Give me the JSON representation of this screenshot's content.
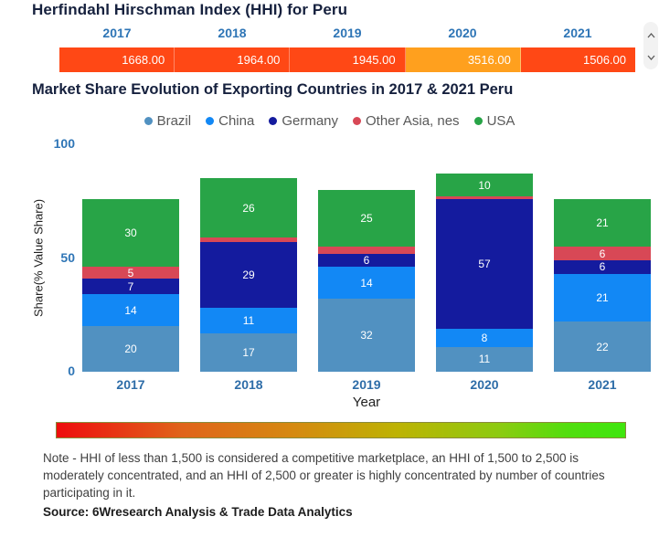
{
  "hhi": {
    "title": "Herfindahl Hirschman Index (HHI) for Peru",
    "years": [
      "2017",
      "2018",
      "2019",
      "2020",
      "2021"
    ],
    "display_values": [
      "1668.00",
      "1964.00",
      "1945.00",
      "3516.00",
      "1506.00"
    ],
    "cell_colors": [
      "#FF4815",
      "#FF4815",
      "#FF4815",
      "#FFA01E",
      "#FF4815"
    ]
  },
  "chart": {
    "title": "Market Share Evolution of Exporting Countries in 2017 & 2021 Peru"
  },
  "chart_data": [
    {
      "type": "heatmap",
      "title": "Herfindahl Hirschman Index (HHI) for Peru",
      "x": [
        "2017",
        "2018",
        "2019",
        "2020",
        "2021"
      ],
      "values": [
        1668.0,
        1964.0,
        1945.0,
        3516.0,
        1506.0
      ],
      "cell_colors": [
        "#FF4815",
        "#FF4815",
        "#FF4815",
        "#FFA01E",
        "#FF4815"
      ]
    },
    {
      "type": "bar",
      "subtype": "stacked",
      "title": "Market Share Evolution of Exporting Countries in 2017 & 2021 Peru",
      "categories": [
        "2017",
        "2018",
        "2019",
        "2020",
        "2021"
      ],
      "series": [
        {
          "name": "Brazil",
          "color": "#5191C1",
          "values": [
            20,
            17,
            32,
            11,
            22
          ]
        },
        {
          "name": "China",
          "color": "#1288F5",
          "values": [
            14,
            11,
            14,
            8,
            21
          ]
        },
        {
          "name": "Germany",
          "color": "#141B9E",
          "values": [
            7,
            29,
            6,
            57,
            6
          ]
        },
        {
          "name": "Other Asia, nes",
          "color": "#D84856",
          "values": [
            5,
            2,
            3,
            1,
            6
          ]
        },
        {
          "name": "USA",
          "color": "#28A447",
          "values": [
            30,
            26,
            25,
            10,
            21
          ]
        }
      ],
      "xlabel": "Year",
      "ylabel": "Share(% Value Share)",
      "ylim": [
        0,
        100
      ],
      "yticks": [
        0,
        50,
        100
      ],
      "legend_position": "top",
      "grid": false,
      "label_min_value": 5
    }
  ],
  "gradient_legend": {
    "left_color": "#EE0D0D",
    "right_color": "#3FE60D"
  },
  "scrollbar": {
    "up_icon": "chevron-up",
    "down_icon": "chevron-down"
  },
  "footer": {
    "note": "Note - HHI of less than 1,500 is considered a competitive marketplace, an HHI of 1,500 to 2,500 is moderately concentrated, and an HHI of 2,500 or greater is highly concentrated by number of countries participating in it.",
    "source": "Source: 6Wresearch Analysis & Trade Data Analytics"
  }
}
